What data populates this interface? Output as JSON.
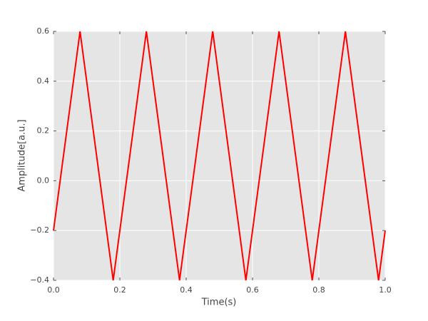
{
  "chart_data": {
    "type": "line",
    "xlabel": "Time(s)",
    "ylabel": "Amplitude[a.u.]",
    "x": [
      0,
      0.08,
      0.18,
      0.28,
      0.38,
      0.48,
      0.58,
      0.68,
      0.78,
      0.88,
      0.98,
      1.0
    ],
    "series": [
      {
        "color": "#ff0000",
        "values": [
          -0.2,
          0.6,
          -0.4,
          0.6,
          -0.4,
          0.6,
          -0.4,
          0.6,
          -0.4,
          0.6,
          -0.4,
          -0.2
        ]
      }
    ],
    "xlim": [
      0,
      1
    ],
    "ylim": [
      -0.4,
      0.6
    ],
    "xticks": [
      {
        "value": 0,
        "label": "0.0"
      },
      0.2,
      0.4,
      0.6,
      0.8,
      {
        "value": 1,
        "label": "1.0"
      }
    ],
    "yticks": [
      {
        "value": -0.4,
        "label": "−0.4"
      },
      {
        "value": -0.2,
        "label": "−0.2"
      },
      {
        "value": 0,
        "label": "0.0"
      },
      0.2,
      0.4,
      0.6
    ],
    "grid": true,
    "background": "#e5e5e5"
  }
}
